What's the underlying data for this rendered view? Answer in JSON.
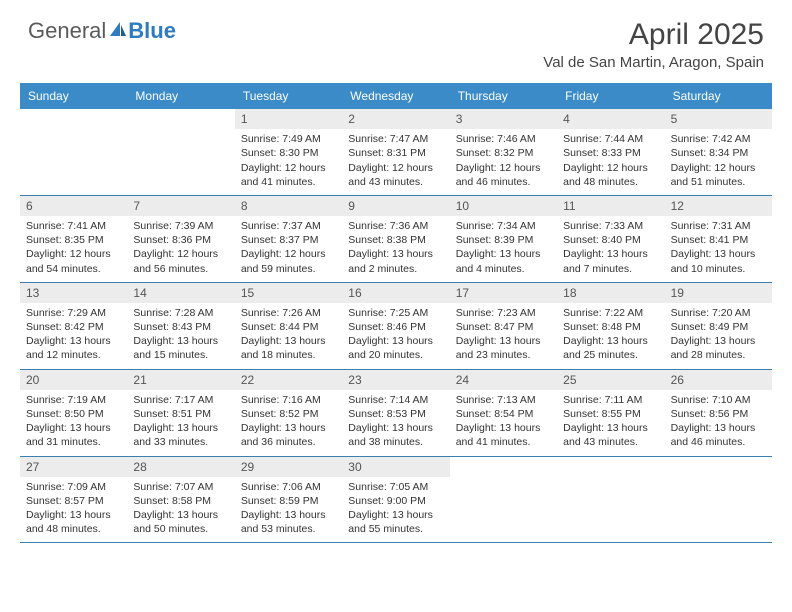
{
  "brand": {
    "part1": "General",
    "part2": "Blue"
  },
  "title": "April 2025",
  "location": "Val de San Martin, Aragon, Spain",
  "colors": {
    "header_bg": "#3b8bc9",
    "header_text": "#ffffff",
    "daynum_bg": "#ececec",
    "cell_border": "#3b7fb0",
    "body_text": "#333333",
    "brand_gray": "#5a5a5a",
    "brand_blue": "#2f7bbf"
  },
  "dayNames": [
    "Sunday",
    "Monday",
    "Tuesday",
    "Wednesday",
    "Thursday",
    "Friday",
    "Saturday"
  ],
  "startOffset": 2,
  "days": [
    {
      "n": 1,
      "sunrise": "7:49 AM",
      "sunset": "8:30 PM",
      "daylight": "12 hours and 41 minutes."
    },
    {
      "n": 2,
      "sunrise": "7:47 AM",
      "sunset": "8:31 PM",
      "daylight": "12 hours and 43 minutes."
    },
    {
      "n": 3,
      "sunrise": "7:46 AM",
      "sunset": "8:32 PM",
      "daylight": "12 hours and 46 minutes."
    },
    {
      "n": 4,
      "sunrise": "7:44 AM",
      "sunset": "8:33 PM",
      "daylight": "12 hours and 48 minutes."
    },
    {
      "n": 5,
      "sunrise": "7:42 AM",
      "sunset": "8:34 PM",
      "daylight": "12 hours and 51 minutes."
    },
    {
      "n": 6,
      "sunrise": "7:41 AM",
      "sunset": "8:35 PM",
      "daylight": "12 hours and 54 minutes."
    },
    {
      "n": 7,
      "sunrise": "7:39 AM",
      "sunset": "8:36 PM",
      "daylight": "12 hours and 56 minutes."
    },
    {
      "n": 8,
      "sunrise": "7:37 AM",
      "sunset": "8:37 PM",
      "daylight": "12 hours and 59 minutes."
    },
    {
      "n": 9,
      "sunrise": "7:36 AM",
      "sunset": "8:38 PM",
      "daylight": "13 hours and 2 minutes."
    },
    {
      "n": 10,
      "sunrise": "7:34 AM",
      "sunset": "8:39 PM",
      "daylight": "13 hours and 4 minutes."
    },
    {
      "n": 11,
      "sunrise": "7:33 AM",
      "sunset": "8:40 PM",
      "daylight": "13 hours and 7 minutes."
    },
    {
      "n": 12,
      "sunrise": "7:31 AM",
      "sunset": "8:41 PM",
      "daylight": "13 hours and 10 minutes."
    },
    {
      "n": 13,
      "sunrise": "7:29 AM",
      "sunset": "8:42 PM",
      "daylight": "13 hours and 12 minutes."
    },
    {
      "n": 14,
      "sunrise": "7:28 AM",
      "sunset": "8:43 PM",
      "daylight": "13 hours and 15 minutes."
    },
    {
      "n": 15,
      "sunrise": "7:26 AM",
      "sunset": "8:44 PM",
      "daylight": "13 hours and 18 minutes."
    },
    {
      "n": 16,
      "sunrise": "7:25 AM",
      "sunset": "8:46 PM",
      "daylight": "13 hours and 20 minutes."
    },
    {
      "n": 17,
      "sunrise": "7:23 AM",
      "sunset": "8:47 PM",
      "daylight": "13 hours and 23 minutes."
    },
    {
      "n": 18,
      "sunrise": "7:22 AM",
      "sunset": "8:48 PM",
      "daylight": "13 hours and 25 minutes."
    },
    {
      "n": 19,
      "sunrise": "7:20 AM",
      "sunset": "8:49 PM",
      "daylight": "13 hours and 28 minutes."
    },
    {
      "n": 20,
      "sunrise": "7:19 AM",
      "sunset": "8:50 PM",
      "daylight": "13 hours and 31 minutes."
    },
    {
      "n": 21,
      "sunrise": "7:17 AM",
      "sunset": "8:51 PM",
      "daylight": "13 hours and 33 minutes."
    },
    {
      "n": 22,
      "sunrise": "7:16 AM",
      "sunset": "8:52 PM",
      "daylight": "13 hours and 36 minutes."
    },
    {
      "n": 23,
      "sunrise": "7:14 AM",
      "sunset": "8:53 PM",
      "daylight": "13 hours and 38 minutes."
    },
    {
      "n": 24,
      "sunrise": "7:13 AM",
      "sunset": "8:54 PM",
      "daylight": "13 hours and 41 minutes."
    },
    {
      "n": 25,
      "sunrise": "7:11 AM",
      "sunset": "8:55 PM",
      "daylight": "13 hours and 43 minutes."
    },
    {
      "n": 26,
      "sunrise": "7:10 AM",
      "sunset": "8:56 PM",
      "daylight": "13 hours and 46 minutes."
    },
    {
      "n": 27,
      "sunrise": "7:09 AM",
      "sunset": "8:57 PM",
      "daylight": "13 hours and 48 minutes."
    },
    {
      "n": 28,
      "sunrise": "7:07 AM",
      "sunset": "8:58 PM",
      "daylight": "13 hours and 50 minutes."
    },
    {
      "n": 29,
      "sunrise": "7:06 AM",
      "sunset": "8:59 PM",
      "daylight": "13 hours and 53 minutes."
    },
    {
      "n": 30,
      "sunrise": "7:05 AM",
      "sunset": "9:00 PM",
      "daylight": "13 hours and 55 minutes."
    }
  ],
  "labels": {
    "sunrise": "Sunrise: ",
    "sunset": "Sunset: ",
    "daylight": "Daylight: "
  }
}
